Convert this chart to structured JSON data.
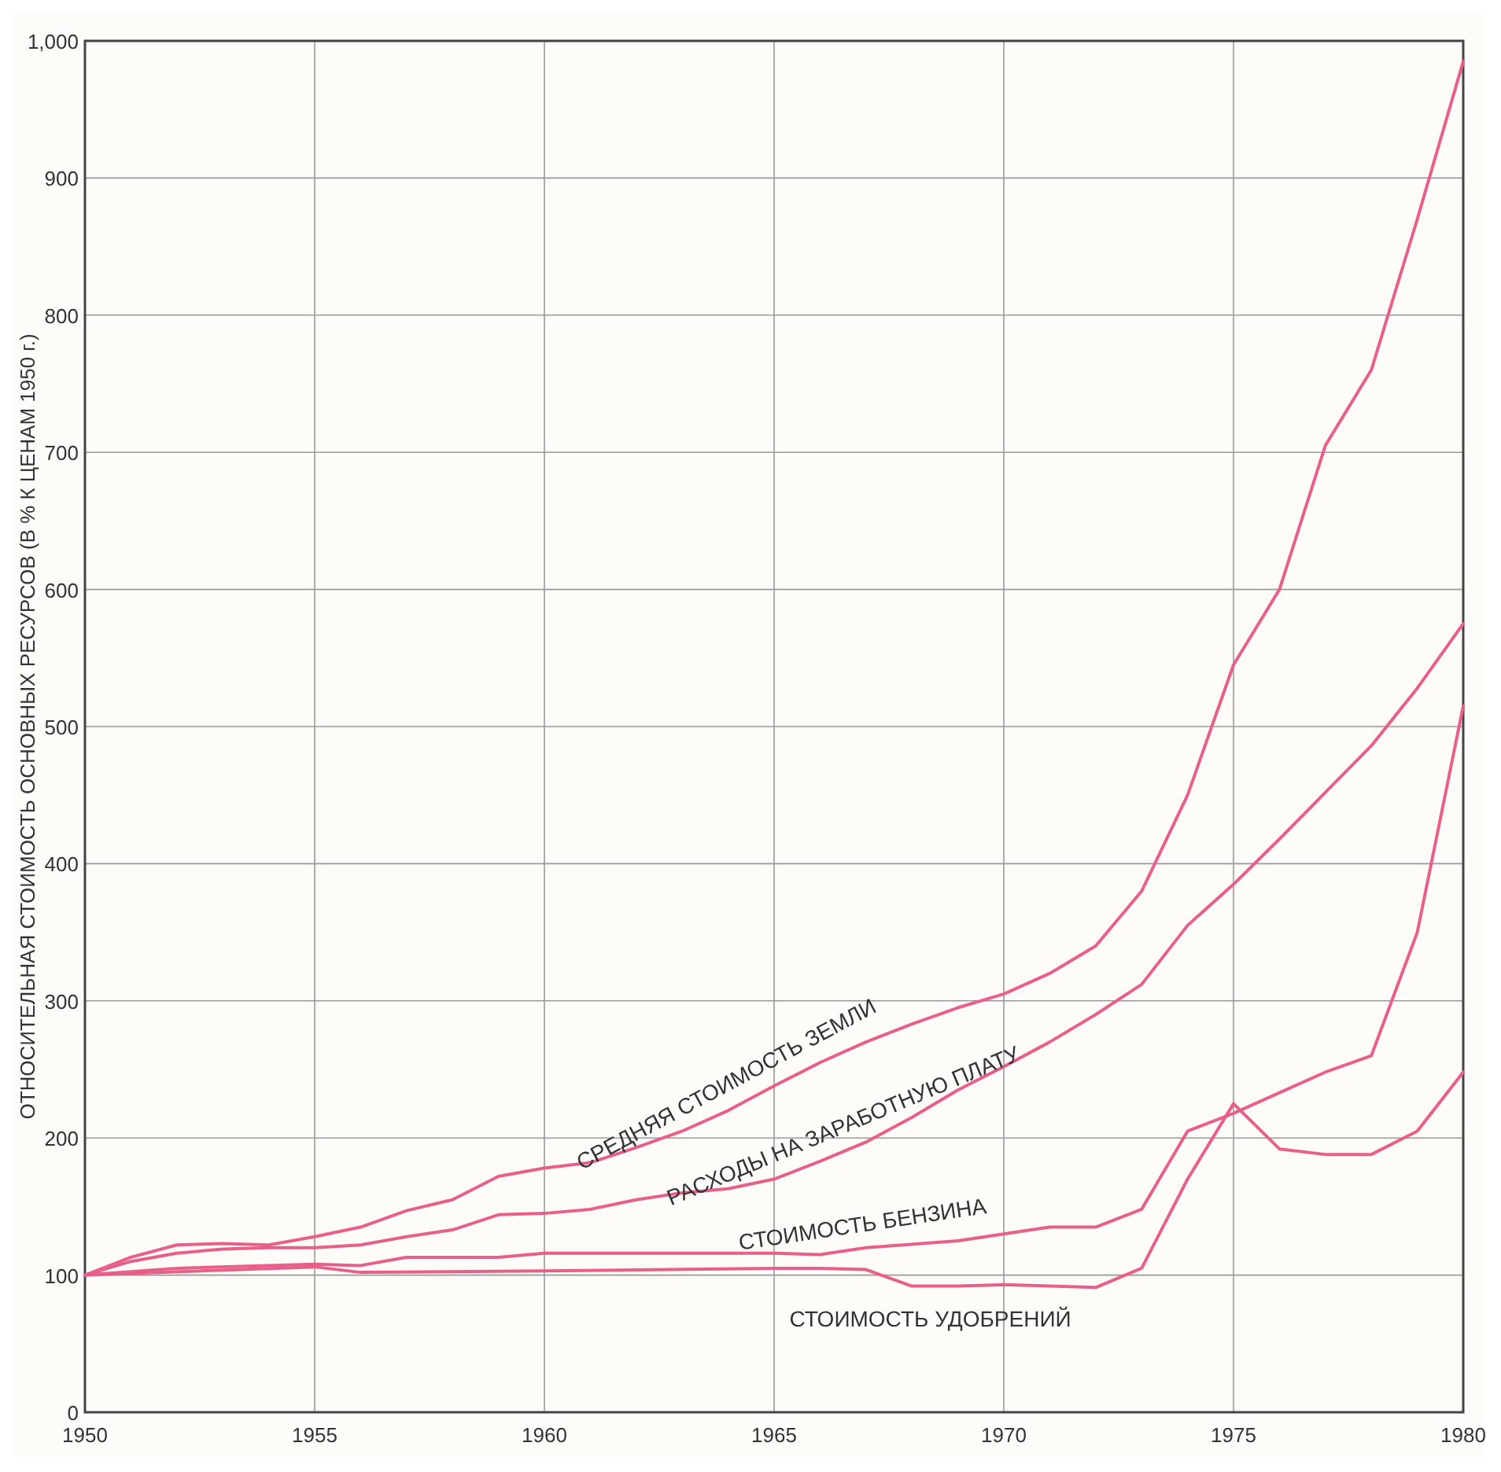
{
  "chart_data": {
    "type": "line",
    "ylabel": "ОТНОСИТЕЛЬНАЯ СТОИМОСТЬ ОСНОВНЫХ РЕСУРСОВ (В % К ЦЕНАМ 1950 г.)",
    "xlim": [
      1950,
      1980
    ],
    "xticks": [
      1950,
      1955,
      1960,
      1965,
      1970,
      1975,
      1980
    ],
    "ylim": [
      0,
      1000
    ],
    "yticks": [
      0,
      100,
      200,
      300,
      400,
      500,
      600,
      700,
      800,
      900,
      {
        "value": 1000,
        "label": "1,000"
      }
    ],
    "grid": true,
    "marker": "none",
    "line_style": "solid",
    "series": [
      {
        "color": "#e8608a",
        "x": [
          1950,
          1951,
          1952,
          1953,
          1954,
          1955,
          1956,
          1957,
          1958,
          1959,
          1960,
          1961,
          1962,
          1963,
          1964,
          1965,
          1966,
          1967,
          1968,
          1969,
          1970,
          1971,
          1972,
          1973,
          1974,
          1975,
          1976,
          1977,
          1978,
          1979,
          1980
        ],
        "values": [
          100,
          113,
          122,
          123,
          122,
          128,
          135,
          147,
          155,
          172,
          178,
          182,
          193,
          205,
          220,
          238,
          255,
          270,
          283,
          295,
          305,
          320,
          340,
          380,
          450,
          545,
          600,
          705,
          760,
          870,
          985
        ]
      },
      {
        "color": "#e8608a",
        "x": [
          1950,
          1951,
          1952,
          1953,
          1954,
          1955,
          1956,
          1957,
          1958,
          1959,
          1960,
          1961,
          1962,
          1963,
          1964,
          1965,
          1966,
          1967,
          1968,
          1969,
          1970,
          1971,
          1972,
          1973,
          1974,
          1975,
          1976,
          1977,
          1978,
          1979,
          1980
        ],
        "values": [
          100,
          110,
          116,
          119,
          120,
          120,
          122,
          128,
          133,
          144,
          145,
          148,
          155,
          160,
          163,
          170,
          183,
          197,
          215,
          235,
          252,
          270,
          290,
          312,
          355,
          385,
          418,
          452,
          486,
          528,
          575
        ]
      },
      {
        "color": "#e8608a",
        "x": [
          1950,
          1952,
          1955,
          1956,
          1957,
          1959,
          1960,
          1965,
          1966,
          1967,
          1969,
          1970,
          1971,
          1972,
          1973,
          1974,
          1975,
          1976,
          1977,
          1978,
          1979,
          1980
        ],
        "values": [
          100,
          105,
          108,
          107,
          113,
          113,
          116,
          116,
          115,
          120,
          125,
          130,
          135,
          135,
          148,
          205,
          218,
          233,
          248,
          260,
          350,
          515
        ]
      },
      {
        "color": "#e8608a",
        "x": [
          1950,
          1955,
          1956,
          1960,
          1965,
          1966,
          1967,
          1968,
          1969,
          1970,
          1971,
          1972,
          1973,
          1974,
          1975,
          1976,
          1977,
          1978,
          1979,
          1980
        ],
        "values": [
          100,
          106,
          102,
          103,
          105,
          105,
          104,
          92,
          92,
          93,
          92,
          91,
          105,
          170,
          225,
          192,
          188,
          188,
          205,
          248
        ]
      }
    ],
    "annotations": [
      {
        "text": "СРЕДНЯЯ СТОИМОСТЬ ЗЕМЛИ",
        "x": 1964.2,
        "y": 224
      },
      {
        "text": "РАСХОДЫ НА ЗАРАБОТНУЮ ПЛАТУ",
        "x": 1966.7,
        "y": 193
      },
      {
        "text": "СТОИМОСТЬ БЕНЗИНА",
        "x": 1967,
        "y": 120
      },
      {
        "text": "СТОИМОСТЬ УДОБРЕНИЙ",
        "x": 1968.4,
        "y": 92
      }
    ]
  }
}
